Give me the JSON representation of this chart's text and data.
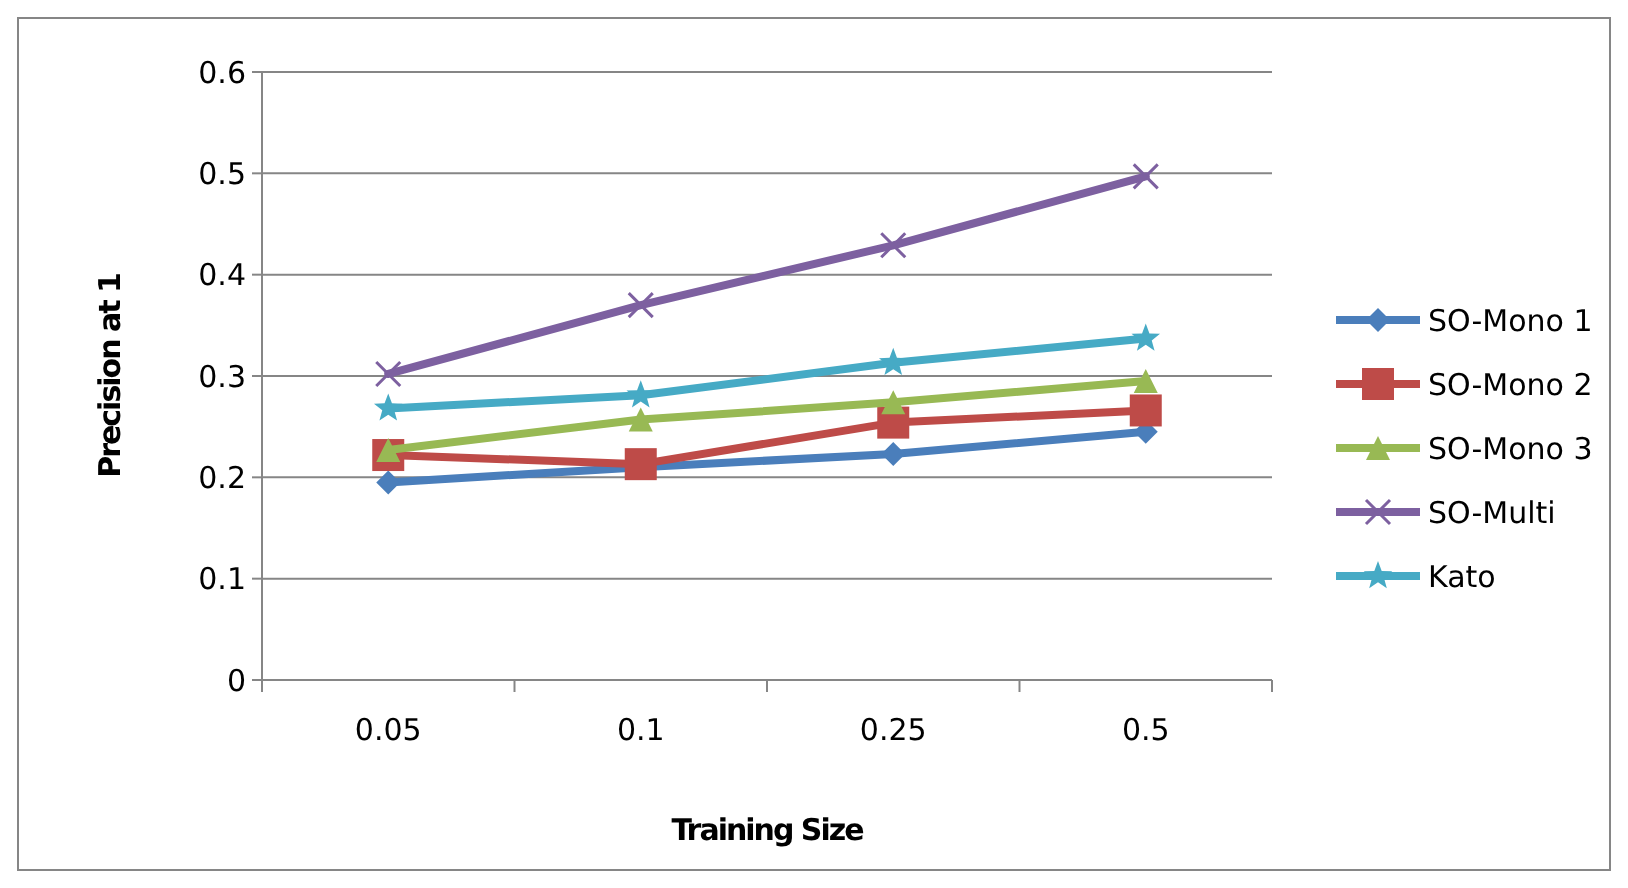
{
  "chart_data": {
    "type": "line",
    "xlabel": "Training Size",
    "ylabel": "Precision at 1",
    "categories": [
      "0.05",
      "0.1",
      "0.25",
      "0.5"
    ],
    "ylim": [
      0,
      0.6
    ],
    "yticks": [
      0,
      0.1,
      0.2,
      0.3,
      0.4,
      0.5,
      0.6
    ],
    "grid": "y",
    "legend": "right",
    "series": [
      {
        "name": "SO-Mono 1",
        "color": "#4a7ebb",
        "marker": "diamond",
        "values": [
          0.195,
          0.21,
          0.223,
          0.245
        ]
      },
      {
        "name": "SO-Mono 2",
        "color": "#be4b48",
        "marker": "square",
        "values": [
          0.222,
          0.213,
          0.254,
          0.266
        ]
      },
      {
        "name": "SO-Mono 3",
        "color": "#98b954",
        "marker": "triangle",
        "values": [
          0.227,
          0.257,
          0.274,
          0.295
        ]
      },
      {
        "name": "SO-Multi",
        "color": "#7d60a0",
        "marker": "cross",
        "values": [
          0.302,
          0.37,
          0.429,
          0.497
        ]
      },
      {
        "name": "Kato",
        "color": "#46aac5",
        "marker": "star",
        "values": [
          0.268,
          0.281,
          0.313,
          0.337
        ]
      }
    ]
  }
}
